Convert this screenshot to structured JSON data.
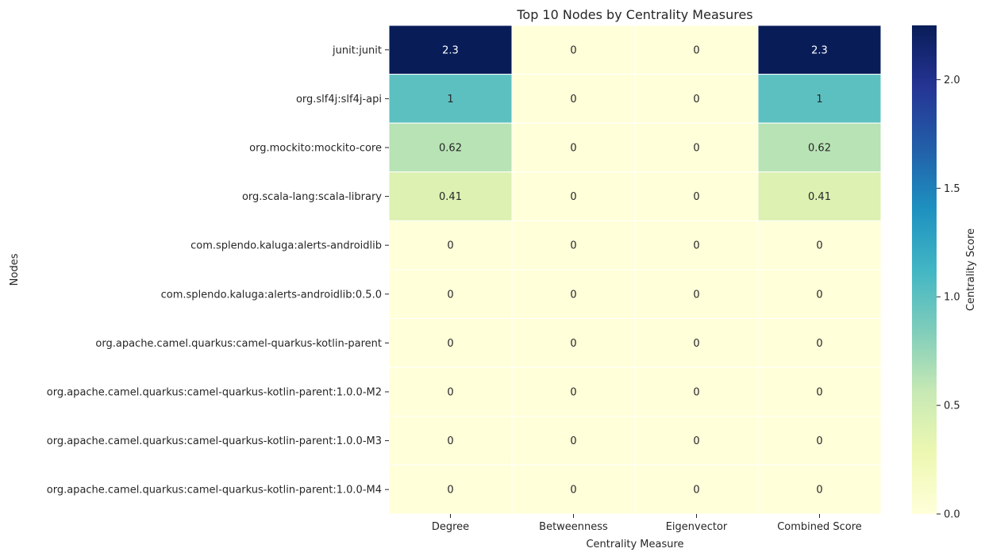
{
  "chart_data": {
    "type": "heatmap",
    "title": "Top 10 Nodes by Centrality Measures",
    "xlabel": "Centrality Measure",
    "ylabel": "Nodes",
    "columns": [
      "Degree",
      "Betweenness",
      "Eigenvector",
      "Combined Score"
    ],
    "rows": [
      "junit:junit",
      "org.slf4j:slf4j-api",
      "org.mockito:mockito-core",
      "org.scala-lang:scala-library",
      "com.splendo.kaluga:alerts-androidlib",
      "com.splendo.kaluga:alerts-androidlib:0.5.0",
      "org.apache.camel.quarkus:camel-quarkus-kotlin-parent",
      "org.apache.camel.quarkus:camel-quarkus-kotlin-parent:1.0.0-M2",
      "org.apache.camel.quarkus:camel-quarkus-kotlin-parent:1.0.0-M3",
      "org.apache.camel.quarkus:camel-quarkus-kotlin-parent:1.0.0-M4"
    ],
    "values": [
      [
        2.25,
        0,
        0,
        2.25
      ],
      [
        1.0,
        0,
        0,
        1.0
      ],
      [
        0.62,
        0,
        0,
        0.62
      ],
      [
        0.41,
        0,
        0,
        0.41
      ],
      [
        0,
        0,
        0,
        0
      ],
      [
        0,
        0,
        0,
        0
      ],
      [
        0,
        0,
        0,
        0
      ],
      [
        0,
        0,
        0,
        0
      ],
      [
        0,
        0,
        0,
        0
      ],
      [
        0,
        0,
        0,
        0
      ]
    ],
    "annotations": [
      [
        "2.3",
        "0",
        "0",
        "2.3"
      ],
      [
        "1",
        "0",
        "0",
        "1"
      ],
      [
        "0.62",
        "0",
        "0",
        "0.62"
      ],
      [
        "0.41",
        "0",
        "0",
        "0.41"
      ],
      [
        "0",
        "0",
        "0",
        "0"
      ],
      [
        "0",
        "0",
        "0",
        "0"
      ],
      [
        "0",
        "0",
        "0",
        "0"
      ],
      [
        "0",
        "0",
        "0",
        "0"
      ],
      [
        "0",
        "0",
        "0",
        "0"
      ],
      [
        "0",
        "0",
        "0",
        "0"
      ]
    ],
    "colormap": "YlGnBu",
    "vmin": 0,
    "vmax": 2.25,
    "colorbar": {
      "label": "Centrality Score",
      "ticks": [
        0.0,
        0.5,
        1.0,
        1.5,
        2.0
      ],
      "tick_labels": [
        "0.0",
        "0.5",
        "1.0",
        "1.5",
        "2.0"
      ]
    },
    "cell_border_color": "#ffffff"
  }
}
